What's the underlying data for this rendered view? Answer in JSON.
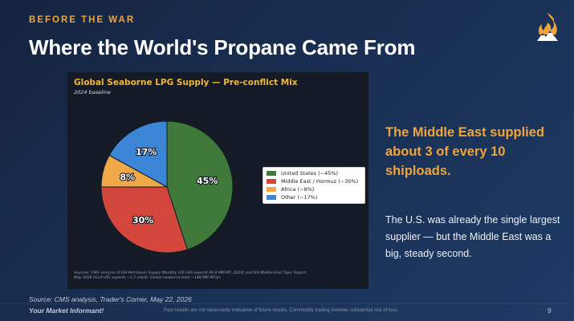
{
  "slide": {
    "kicker": "BEFORE THE WAR",
    "title": "Where the World's Propane Came From",
    "logo_icon": "flame-logo-icon"
  },
  "callout": {
    "headline": "The Middle East supplied about 3 of every 10 shiploads.",
    "body": "The U.S. was already the single largest supplier — but the Middle East was a big, steady second."
  },
  "source": "Source: CMS analysis, Trader's Corner, May 22, 2026",
  "footer": {
    "brand": "Your Market Informant!",
    "disclaimer": "Past results are not necessarily indicative of future results. Commodity trading involves substantial risk of loss.",
    "page_number": "9"
  },
  "chart_data": {
    "type": "pie",
    "title": "Global Seaborne LPG Supply — Pre-conflict Mix",
    "subtitle": "2024 baseline",
    "categories": [
      "United States (~45%)",
      "Middle East / Hormuz (~30%)",
      "Africa (~8%)",
      "Other (~17%)"
    ],
    "values": [
      45,
      30,
      8,
      17
    ],
    "data_labels": [
      "45%",
      "30%",
      "8%",
      "17%"
    ],
    "colors": [
      "#3f7a3a",
      "#d3463c",
      "#f0a848",
      "#3d86d6"
    ],
    "legend_position": "right",
    "notes": "Sources: CMS analysis of EIA Petroleum Supply Monthly (US LPG exports 66.8 MM MT, 2024) and IEA Middle East Topic Report, May 2026 (Gulf LPG exports ~1.5 mb/d). Global seaborne total ~148 MM MT/yr."
  }
}
